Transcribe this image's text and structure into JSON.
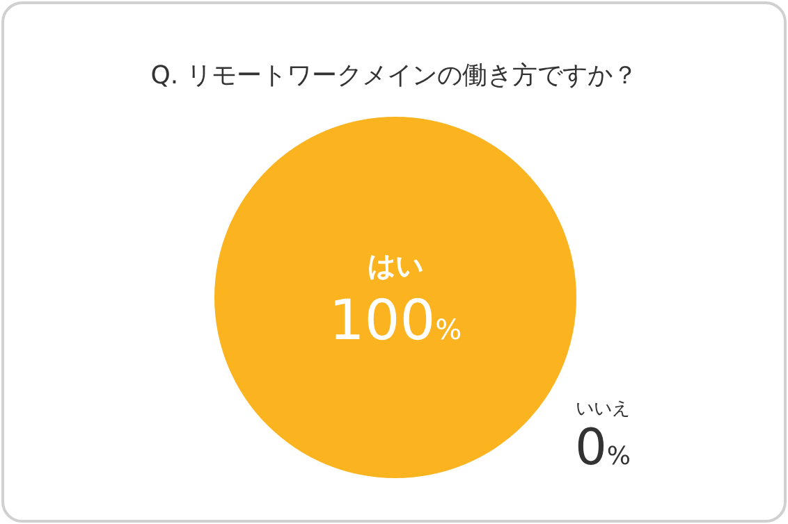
{
  "chart_data": {
    "type": "pie",
    "title": "Q. リモートワークメインの働き方ですか？",
    "categories": [
      "はい",
      "いいえ"
    ],
    "values": [
      100,
      0
    ],
    "colors": [
      "#fbb41f",
      "#cccccc"
    ],
    "value_labels": [
      "100%",
      "0%"
    ],
    "legend": false
  }
}
